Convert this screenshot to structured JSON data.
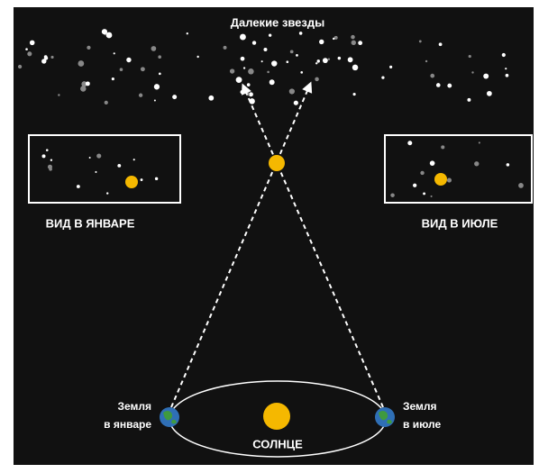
{
  "title": "Далекие звезды",
  "views": [
    {
      "label": "ВИД В ЯНВАРЕ"
    },
    {
      "label": "ВИД В ИЮЛЕ"
    }
  ],
  "earth": [
    {
      "lines": [
        "Земля",
        "в январе"
      ]
    },
    {
      "lines": [
        "Земля",
        "в июле"
      ]
    }
  ],
  "sun": "СОЛНЦЕ"
}
